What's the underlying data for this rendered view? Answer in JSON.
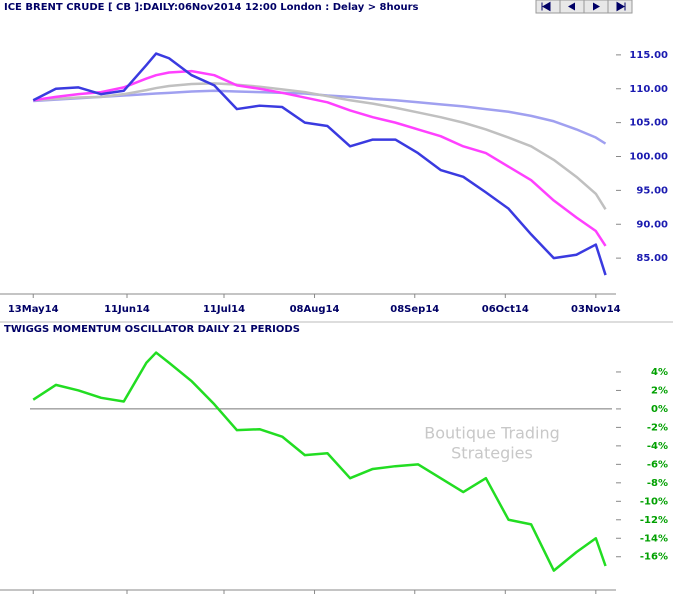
{
  "chart_data": [
    {
      "type": "line",
      "title": "ICE BRENT CRUDE [ CB ]:DAILY:06Nov2014 12:00 London : Delay > 8hours",
      "x": [
        "2014-05-13",
        "2014-05-20",
        "2014-05-27",
        "2014-06-03",
        "2014-06-10",
        "2014-06-17",
        "2014-06-20",
        "2014-06-24",
        "2014-07-01",
        "2014-07-08",
        "2014-07-15",
        "2014-07-22",
        "2014-07-29",
        "2014-08-05",
        "2014-08-12",
        "2014-08-19",
        "2014-08-26",
        "2014-09-02",
        "2014-09-09",
        "2014-09-16",
        "2014-09-23",
        "2014-09-30",
        "2014-10-07",
        "2014-10-14",
        "2014-10-21",
        "2014-10-28",
        "2014-11-03",
        "2014-11-06"
      ],
      "xlim": [
        "2014-05-12",
        "2014-11-08"
      ],
      "xticks": [
        {
          "value": "2014-05-13",
          "label": "13May14"
        },
        {
          "value": "2014-06-11",
          "label": "11Jun14"
        },
        {
          "value": "2014-07-11",
          "label": "11Jul14"
        },
        {
          "value": "2014-08-08",
          "label": "08Aug14"
        },
        {
          "value": "2014-09-08",
          "label": "08Sep14"
        },
        {
          "value": "2014-10-06",
          "label": "06Oct14"
        },
        {
          "value": "2014-11-03",
          "label": "03Nov14"
        }
      ],
      "ylim": [
        80,
        120
      ],
      "yticks": [
        {
          "value": 85,
          "label": "85.00"
        },
        {
          "value": 90,
          "label": "90.00"
        },
        {
          "value": 95,
          "label": "95.00"
        },
        {
          "value": 100,
          "label": "100.00"
        },
        {
          "value": 105,
          "label": "105.00"
        },
        {
          "value": 110,
          "label": "110.00"
        },
        {
          "value": 115,
          "label": "115.00"
        }
      ],
      "series": [
        {
          "color": "#a0a0f0",
          "values": [
            108.2,
            108.4,
            108.6,
            108.8,
            109,
            109.2,
            109.3,
            109.4,
            109.6,
            109.7,
            109.6,
            109.5,
            109.4,
            109.3,
            109,
            108.8,
            108.5,
            108.3,
            108,
            107.7,
            107.4,
            107,
            106.6,
            106,
            105.2,
            104,
            102.8,
            101.9
          ]
        },
        {
          "color": "#c0c0c0",
          "values": [
            108.3,
            108.5,
            108.7,
            108.8,
            109.2,
            109.8,
            110.1,
            110.4,
            110.7,
            110.8,
            110.6,
            110.3,
            109.9,
            109.5,
            108.9,
            108.3,
            107.8,
            107.2,
            106.5,
            105.8,
            105,
            104,
            102.8,
            101.5,
            99.5,
            97,
            94.5,
            92.2
          ]
        },
        {
          "color": "#ff40ff",
          "values": [
            108.3,
            108.8,
            109.2,
            109.5,
            110.2,
            111.5,
            112,
            112.4,
            112.6,
            112,
            110.5,
            110,
            109.4,
            108.7,
            108,
            106.8,
            105.8,
            105,
            104,
            103,
            101.5,
            100.5,
            98.5,
            96.5,
            93.5,
            91,
            89,
            86.8
          ]
        },
        {
          "color": "#3a3ae0",
          "values": [
            108.3,
            110.0,
            110.2,
            109.2,
            109.7,
            113.5,
            115.2,
            114.5,
            112,
            110.5,
            107,
            107.5,
            107.3,
            105,
            104.5,
            101.5,
            102.5,
            102.5,
            100.5,
            98,
            97,
            94.7,
            92.3,
            88.5,
            85,
            85.5,
            87,
            82.5
          ]
        }
      ]
    },
    {
      "type": "line",
      "title": "TWIGGS MOMENTUM OSCILLATOR DAILY 21 PERIODS",
      "annotations": [
        "Boutique Trading",
        "Strategies"
      ],
      "x": [
        "2014-05-13",
        "2014-05-20",
        "2014-05-27",
        "2014-06-03",
        "2014-06-10",
        "2014-06-17",
        "2014-06-20",
        "2014-06-24",
        "2014-07-01",
        "2014-07-08",
        "2014-07-15",
        "2014-07-22",
        "2014-07-29",
        "2014-08-05",
        "2014-08-12",
        "2014-08-19",
        "2014-08-26",
        "2014-09-02",
        "2014-09-09",
        "2014-09-16",
        "2014-09-23",
        "2014-09-30",
        "2014-10-07",
        "2014-10-14",
        "2014-10-21",
        "2014-10-28",
        "2014-11-03",
        "2014-11-06"
      ],
      "xlim": [
        "2014-05-12",
        "2014-11-08"
      ],
      "ylim": [
        -19.6,
        8
      ],
      "yticks": [
        {
          "value": -16,
          "label": "-16%"
        },
        {
          "value": -14,
          "label": "-14%"
        },
        {
          "value": -12,
          "label": "-12%"
        },
        {
          "value": -10,
          "label": "-10%"
        },
        {
          "value": -8,
          "label": "-8%"
        },
        {
          "value": -6,
          "label": "-6%"
        },
        {
          "value": -4,
          "label": "-4%"
        },
        {
          "value": -2,
          "label": "-2%"
        },
        {
          "value": 0,
          "label": "0%"
        },
        {
          "value": 2,
          "label": "2%"
        },
        {
          "value": 4,
          "label": "4%"
        }
      ],
      "series": [
        {
          "color": "#22dd22",
          "values": [
            1.0,
            2.6,
            2.0,
            1.2,
            0.8,
            5.0,
            6.1,
            5.0,
            3.0,
            0.5,
            -2.3,
            -2.2,
            -3.0,
            -5.0,
            -4.8,
            -7.5,
            -6.5,
            -6.2,
            -6.0,
            -7.5,
            -9.0,
            -7.5,
            -12.0,
            -12.5,
            -17.5,
            -15.5,
            -14.0,
            -17.0
          ]
        }
      ]
    }
  ]
}
